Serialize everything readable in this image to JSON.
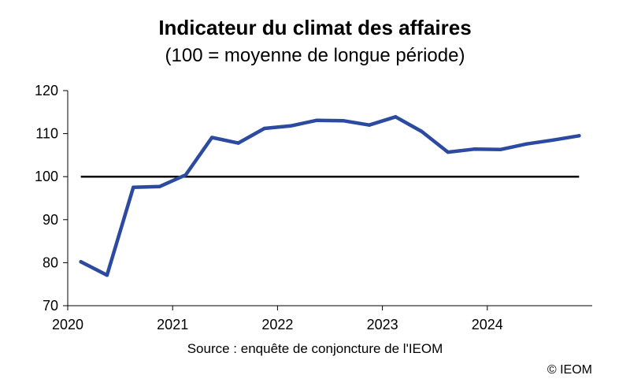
{
  "chart_data": {
    "type": "line",
    "title": "Indicateur du climat des affaires",
    "subtitle": "(100 = moyenne de longue période)",
    "source": "Source : enquête de conjoncture de l'IEOM",
    "copyright": "© IEOM",
    "ylim": [
      70,
      120
    ],
    "yticks": [
      70,
      80,
      90,
      100,
      110,
      120
    ],
    "xlim": [
      2020,
      2025
    ],
    "xticks": [
      2020,
      2021,
      2022,
      2023,
      2024
    ],
    "xtick_labels": [
      "2020",
      "2021",
      "2022",
      "2023",
      "2024"
    ],
    "reference_line": 100,
    "series": [
      {
        "color": "#2B4AA0",
        "x": [
          2020.125,
          2020.375,
          2020.625,
          2020.875,
          2021.125,
          2021.375,
          2021.625,
          2021.875,
          2022.125,
          2022.375,
          2022.625,
          2022.875,
          2023.125,
          2023.375,
          2023.625,
          2023.875,
          2024.125,
          2024.375,
          2024.625,
          2024.875
        ],
        "values": [
          80.2,
          77.1,
          97.5,
          97.7,
          100.4,
          109.1,
          107.8,
          111.2,
          111.8,
          113.1,
          113.0,
          112.0,
          113.9,
          110.5,
          105.7,
          106.4,
          106.3,
          107.6,
          108.5,
          109.5
        ]
      }
    ]
  }
}
